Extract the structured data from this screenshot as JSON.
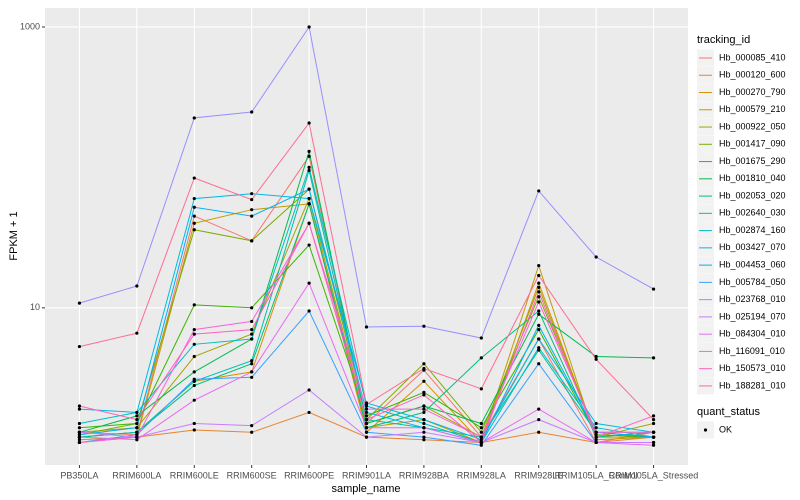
{
  "chart_data": {
    "type": "line",
    "x_label": "sample_name",
    "y_label": "FPKM + 1",
    "log_y": true,
    "grid": true,
    "categories": [
      "PB350LA",
      "RRIM600LA",
      "RRIM600LE",
      "RRIM600SE",
      "RRIM600PE",
      "RRIM901LA",
      "RRIM928BA",
      "RRIM928LA",
      "RRIM928LE",
      "RRIM105LA_Control",
      "RRIM105LA_Stressed"
    ],
    "ylim": [
      0.76,
      1365
    ],
    "yticks": [
      10,
      1000
    ],
    "legend_title": "tracking_id",
    "point_legend_title": "quant_status",
    "point_legend_label": "OK",
    "point_color": "#000000",
    "series": [
      {
        "name": "Hb_000085_410",
        "color": "#F8766D",
        "values": [
          1.3,
          1.25,
          45,
          30,
          120,
          1.5,
          3.6,
          1.2,
          6,
          1.1,
          1.3
        ]
      },
      {
        "name": "Hb_000120_600",
        "color": "#EA8331",
        "values": [
          1.1,
          1.2,
          1.35,
          1.3,
          1.8,
          1.2,
          1.15,
          1.1,
          1.3,
          1.1,
          1.2
        ]
      },
      {
        "name": "Hb_000270_790",
        "color": "#D89000",
        "values": [
          1.2,
          1.3,
          3.0,
          3.5,
          55,
          1.3,
          3.0,
          1.1,
          15,
          1.2,
          1.2
        ]
      },
      {
        "name": "Hb_000579_210",
        "color": "#C09B00",
        "values": [
          1.15,
          1.2,
          40,
          50,
          55,
          1.4,
          1.6,
          1.1,
          20,
          1.15,
          1.2
        ]
      },
      {
        "name": "Hb_000922_050",
        "color": "#A3A500",
        "values": [
          1.3,
          1.4,
          4.5,
          6.5,
          60,
          1.5,
          2.0,
          1.2,
          14,
          1.2,
          1.5
        ]
      },
      {
        "name": "Hb_001417_090",
        "color": "#7CAE00",
        "values": [
          1.25,
          1.5,
          36,
          30,
          70,
          1.6,
          4.0,
          1.3,
          12,
          1.3,
          1.3
        ]
      },
      {
        "name": "Hb_001675_290",
        "color": "#39B600",
        "values": [
          1.4,
          1.5,
          10.5,
          10,
          28,
          1.7,
          2.5,
          1.4,
          7,
          1.25,
          1.2
        ]
      },
      {
        "name": "Hb_001810_040",
        "color": "#00BB4E",
        "values": [
          1.3,
          1.7,
          3.5,
          6,
          130,
          1.5,
          2.0,
          1.5,
          9,
          4.5,
          4.4
        ]
      },
      {
        "name": "Hb_002053_020",
        "color": "#00BF7D",
        "values": [
          1.2,
          1.3,
          2.8,
          4,
          55,
          1.4,
          1.8,
          4.4,
          9.5,
          1.2,
          1.3
        ]
      },
      {
        "name": "Hb_002640_030",
        "color": "#00C1A3",
        "values": [
          1.2,
          1.3,
          3.0,
          4.2,
          95,
          1.6,
          1.4,
          1.2,
          5,
          1.3,
          1.2
        ]
      },
      {
        "name": "Hb_002874_160",
        "color": "#00BFC4",
        "values": [
          1.5,
          1.8,
          5.5,
          6,
          100,
          2.0,
          1.5,
          1.1,
          5.2,
          1.4,
          1.2
        ]
      },
      {
        "name": "Hb_003427_070",
        "color": "#00BAE0",
        "values": [
          1.9,
          1.8,
          60,
          65,
          60,
          2.1,
          1.6,
          1.15,
          6,
          1.5,
          1.3
        ]
      },
      {
        "name": "Hb_004453_060",
        "color": "#00B0F6",
        "values": [
          1.25,
          1.4,
          52,
          45,
          70,
          1.8,
          1.4,
          1.1,
          7.5,
          1.3,
          1.2
        ]
      },
      {
        "name": "Hb_005784_050",
        "color": "#35A2FF",
        "values": [
          1.1,
          1.25,
          3.1,
          3.2,
          9.5,
          1.3,
          1.2,
          1.05,
          4.0,
          1.1,
          1.1
        ]
      },
      {
        "name": "Hb_023768_010",
        "color": "#9590FF",
        "values": [
          10.8,
          14.3,
          225,
          248,
          1000,
          7.3,
          7.4,
          6.1,
          68,
          23,
          13.6
        ]
      },
      {
        "name": "Hb_025194_070",
        "color": "#C77CFF",
        "values": [
          1.3,
          1.2,
          1.5,
          1.45,
          2.6,
          1.2,
          1.3,
          1.1,
          1.6,
          1.1,
          1.1
        ]
      },
      {
        "name": "Hb_084304_010",
        "color": "#E76BF3",
        "values": [
          1.2,
          1.15,
          2.2,
          3.5,
          15,
          1.4,
          1.4,
          1.1,
          1.9,
          1.1,
          1.05
        ]
      },
      {
        "name": "Hb_116091_010",
        "color": "#FA62DB",
        "values": [
          1.1,
          1.2,
          7,
          8,
          40,
          1.9,
          1.9,
          1.2,
          11,
          1.3,
          1.3
        ]
      },
      {
        "name": "Hb_150573_010",
        "color": "#FF62BC",
        "values": [
          2.0,
          1.6,
          6.5,
          7,
          40,
          1.6,
          2.4,
          1.1,
          13,
          1.2,
          1.7
        ]
      },
      {
        "name": "Hb_188281_010",
        "color": "#FF6C91",
        "values": [
          5.3,
          6.6,
          84,
          59,
          207,
          2.05,
          3.7,
          2.65,
          17,
          4.3,
          1.6
        ]
      }
    ]
  }
}
